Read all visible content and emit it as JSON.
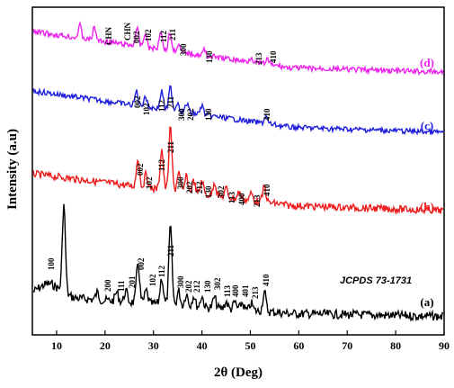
{
  "chart_data": {
    "type": "line",
    "xlabel": "2θ (Deg)",
    "ylabel": "Intensity (a.u)",
    "xlim": [
      5,
      90
    ],
    "x_ticks": [
      10,
      20,
      30,
      40,
      50,
      60,
      70,
      80,
      90
    ],
    "y_ticks_shown": false,
    "grid": false,
    "reference_note": "JCPDS 73-1731",
    "series": [
      {
        "name": "(a)",
        "color": "#000000",
        "peaks": [
          {
            "x": 11.5,
            "label": "100"
          },
          {
            "x": 18.4,
            "label": "200"
          },
          {
            "x": 22.4,
            "label": "111"
          },
          {
            "x": 24.3,
            "label": "201"
          },
          {
            "x": 26.8,
            "label": "002"
          },
          {
            "x": 28.5,
            "label": "102"
          },
          {
            "x": 31.7,
            "label": "112"
          },
          {
            "x": 33.5,
            "label": "211"
          },
          {
            "x": 35.2,
            "label": "300"
          },
          {
            "x": 36.8,
            "label": "202"
          },
          {
            "x": 38.3,
            "label": "212"
          },
          {
            "x": 40.0,
            "label": "130"
          },
          {
            "x": 42.6,
            "label": "302"
          },
          {
            "x": 45.0,
            "label": "113"
          },
          {
            "x": 46.8,
            "label": "400"
          },
          {
            "x": 48.3,
            "label": "401"
          },
          {
            "x": 50.2,
            "label": "213"
          },
          {
            "x": 52.9,
            "label": "410"
          }
        ]
      },
      {
        "name": "(b)",
        "color": "#ee1c1c",
        "peaks": [
          {
            "x": 26.8,
            "label": "002"
          },
          {
            "x": 28.5,
            "label": "102"
          },
          {
            "x": 31.7,
            "label": "112"
          },
          {
            "x": 33.5,
            "label": "211"
          },
          {
            "x": 35.2,
            "label": "300"
          },
          {
            "x": 36.8,
            "label": "202"
          },
          {
            "x": 38.3,
            "label": "212"
          },
          {
            "x": 40.0,
            "label": "130"
          },
          {
            "x": 42.6,
            "label": "302"
          },
          {
            "x": 45.0,
            "label": "113"
          },
          {
            "x": 47.7,
            "label": "400"
          },
          {
            "x": 50.2,
            "label": "213"
          },
          {
            "x": 52.9,
            "label": "410"
          }
        ]
      },
      {
        "name": "(c)",
        "color": "#1f1fdd",
        "peaks": [
          {
            "x": 26.5,
            "label": "002"
          },
          {
            "x": 28.3,
            "label": "102"
          },
          {
            "x": 31.7,
            "label": "112"
          },
          {
            "x": 33.5,
            "label": "211"
          },
          {
            "x": 35.0,
            "label": "300"
          },
          {
            "x": 36.9,
            "label": "202"
          },
          {
            "x": 40.0,
            "label": "130"
          },
          {
            "x": 53.2,
            "label": "410"
          }
        ]
      },
      {
        "name": "(d)",
        "color": "#ee22ee",
        "peaks": [
          {
            "x": 14.8,
            "label": "CHN"
          },
          {
            "x": 17.8,
            "label": "CHN"
          },
          {
            "x": 26.6,
            "label": "002"
          },
          {
            "x": 28.3,
            "label": "102"
          },
          {
            "x": 31.5,
            "label": "112"
          },
          {
            "x": 33.4,
            "label": "211"
          },
          {
            "x": 35.1,
            "label": "300"
          },
          {
            "x": 40.5,
            "label": "130"
          },
          {
            "x": 50.2,
            "label": "213"
          },
          {
            "x": 53.5,
            "label": "410"
          }
        ]
      }
    ]
  }
}
